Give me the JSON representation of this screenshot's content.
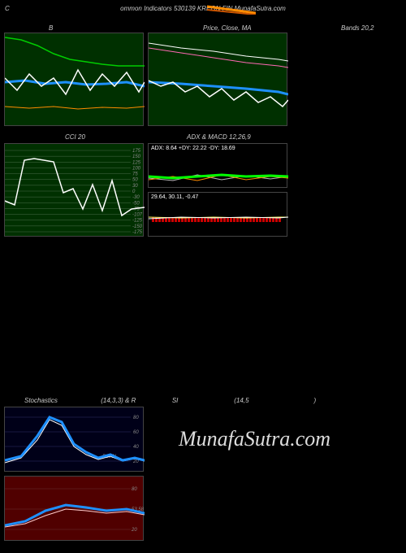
{
  "header": {
    "left": "C",
    "center": "ommon Indicators 530139 KREON FIN MunafaSutra.com"
  },
  "slash": {
    "color1": "#ff8c00",
    "color2": "#cc5500"
  },
  "row1": {
    "label_b": "B",
    "label_price": "Price, Close, MA",
    "label_bands": "Bands 20,2"
  },
  "chart_b": {
    "bg": "#003000",
    "green_line": {
      "color": "#00cc00",
      "points": [
        [
          0,
          5
        ],
        [
          20,
          8
        ],
        [
          40,
          15
        ],
        [
          60,
          25
        ],
        [
          80,
          32
        ],
        [
          100,
          35
        ],
        [
          120,
          38
        ],
        [
          140,
          40
        ],
        [
          160,
          40
        ],
        [
          172,
          40
        ]
      ]
    },
    "blue_line": {
      "color": "#1e90ff",
      "width": 3,
      "points": [
        [
          0,
          60
        ],
        [
          25,
          58
        ],
        [
          50,
          62
        ],
        [
          75,
          60
        ],
        [
          100,
          63
        ],
        [
          125,
          62
        ],
        [
          150,
          60
        ],
        [
          172,
          65
        ]
      ]
    },
    "white_line": {
      "color": "#ffffff",
      "points": [
        [
          0,
          55
        ],
        [
          15,
          70
        ],
        [
          30,
          50
        ],
        [
          45,
          65
        ],
        [
          60,
          55
        ],
        [
          75,
          75
        ],
        [
          90,
          45
        ],
        [
          105,
          70
        ],
        [
          120,
          50
        ],
        [
          135,
          65
        ],
        [
          150,
          48
        ],
        [
          165,
          72
        ],
        [
          172,
          60
        ]
      ]
    },
    "orange_line": {
      "color": "#ff8c00",
      "points": [
        [
          0,
          90
        ],
        [
          30,
          92
        ],
        [
          60,
          90
        ],
        [
          90,
          93
        ],
        [
          120,
          91
        ],
        [
          150,
          92
        ],
        [
          172,
          90
        ]
      ]
    }
  },
  "chart_price": {
    "bg": "#003000",
    "white_top": {
      "color": "#ffffff",
      "points": [
        [
          0,
          12
        ],
        [
          40,
          18
        ],
        [
          80,
          22
        ],
        [
          120,
          28
        ],
        [
          160,
          32
        ],
        [
          172,
          34
        ]
      ]
    },
    "pink": {
      "color": "#ff69b4",
      "points": [
        [
          0,
          18
        ],
        [
          40,
          24
        ],
        [
          80,
          30
        ],
        [
          120,
          36
        ],
        [
          160,
          40
        ],
        [
          172,
          42
        ]
      ]
    },
    "blue": {
      "color": "#1e90ff",
      "width": 3,
      "points": [
        [
          0,
          60
        ],
        [
          40,
          62
        ],
        [
          80,
          65
        ],
        [
          120,
          68
        ],
        [
          160,
          72
        ],
        [
          172,
          75
        ]
      ]
    },
    "white_price": {
      "color": "#ffffff",
      "points": [
        [
          0,
          58
        ],
        [
          15,
          65
        ],
        [
          30,
          60
        ],
        [
          45,
          72
        ],
        [
          60,
          65
        ],
        [
          75,
          78
        ],
        [
          90,
          68
        ],
        [
          105,
          82
        ],
        [
          120,
          72
        ],
        [
          135,
          85
        ],
        [
          150,
          78
        ],
        [
          165,
          90
        ],
        [
          172,
          82
        ]
      ]
    }
  },
  "row2": {
    "label_cci": "CCI 20",
    "label_adx": "ADX   & MACD 12,26,9"
  },
  "chart_cci": {
    "bg": "#003000",
    "ticks": [
      175,
      150,
      125,
      100,
      75,
      50,
      30,
      0,
      -30,
      -50,
      -75,
      -107,
      -125,
      -150,
      -175
    ],
    "highlight": -107,
    "line": {
      "color": "#ffffff",
      "points": [
        [
          0,
          70
        ],
        [
          12,
          75
        ],
        [
          24,
          20
        ],
        [
          36,
          18
        ],
        [
          48,
          20
        ],
        [
          60,
          22
        ],
        [
          72,
          60
        ],
        [
          84,
          55
        ],
        [
          96,
          80
        ],
        [
          108,
          50
        ],
        [
          120,
          82
        ],
        [
          132,
          45
        ],
        [
          144,
          88
        ],
        [
          156,
          80
        ],
        [
          172,
          78
        ]
      ]
    }
  },
  "chart_adx": {
    "text": "ADX: 8.64   +DY: 22.22   -DY: 18.69",
    "green": {
      "color": "#00ff00",
      "width": 3,
      "points": [
        [
          0,
          40
        ],
        [
          30,
          42
        ],
        [
          60,
          40
        ],
        [
          90,
          38
        ],
        [
          120,
          40
        ],
        [
          150,
          39
        ],
        [
          172,
          40
        ]
      ]
    },
    "orange": {
      "color": "#ff8c00",
      "points": [
        [
          0,
          44
        ],
        [
          30,
          40
        ],
        [
          60,
          45
        ],
        [
          90,
          38
        ],
        [
          120,
          44
        ],
        [
          150,
          40
        ],
        [
          172,
          42
        ]
      ]
    },
    "white": {
      "color": "#bbb",
      "points": [
        [
          0,
          42
        ],
        [
          30,
          45
        ],
        [
          60,
          38
        ],
        [
          90,
          44
        ],
        [
          120,
          39
        ],
        [
          150,
          43
        ],
        [
          172,
          40
        ]
      ]
    }
  },
  "chart_macd": {
    "text": "29.64,  30.11,  -0.47",
    "bars": {
      "color": "#cc0000",
      "y": 30,
      "height": 6,
      "count": 40
    },
    "yellow": {
      "color": "#ffff66",
      "points": [
        [
          0,
          30
        ],
        [
          40,
          31
        ],
        [
          80,
          30
        ],
        [
          120,
          31
        ],
        [
          160,
          30
        ],
        [
          172,
          30
        ]
      ]
    },
    "white": {
      "color": "#fff",
      "points": [
        [
          0,
          32
        ],
        [
          40,
          30
        ],
        [
          80,
          31
        ],
        [
          120,
          30
        ],
        [
          160,
          31
        ],
        [
          172,
          30
        ]
      ]
    }
  },
  "row3": {
    "full": "Stochastics                        (14,3,3) & R                    SI                               (14,5                                    )"
  },
  "chart_stoch": {
    "bg": "#000018",
    "ticks": [
      80,
      60,
      40,
      20
    ],
    "resol_label": "ResOL",
    "blue": {
      "color": "#1e90ff",
      "width": 3,
      "points": [
        [
          0,
          65
        ],
        [
          20,
          60
        ],
        [
          40,
          35
        ],
        [
          55,
          12
        ],
        [
          70,
          18
        ],
        [
          85,
          45
        ],
        [
          100,
          55
        ],
        [
          115,
          62
        ],
        [
          130,
          58
        ],
        [
          145,
          65
        ],
        [
          160,
          62
        ],
        [
          172,
          65
        ]
      ]
    },
    "white": {
      "color": "#fff",
      "points": [
        [
          0,
          68
        ],
        [
          20,
          62
        ],
        [
          40,
          40
        ],
        [
          55,
          15
        ],
        [
          70,
          22
        ],
        [
          85,
          48
        ],
        [
          100,
          58
        ],
        [
          115,
          64
        ],
        [
          130,
          60
        ],
        [
          145,
          66
        ],
        [
          160,
          63
        ],
        [
          172,
          66
        ]
      ]
    }
  },
  "chart_rsi": {
    "bg": "#500000",
    "ticks": [
      80,
      "53 58 50",
      20
    ],
    "blue": {
      "color": "#1e90ff",
      "width": 3,
      "points": [
        [
          0,
          60
        ],
        [
          25,
          55
        ],
        [
          50,
          42
        ],
        [
          75,
          35
        ],
        [
          100,
          38
        ],
        [
          125,
          42
        ],
        [
          150,
          40
        ],
        [
          172,
          45
        ]
      ]
    },
    "white": {
      "color": "#ffcccc",
      "points": [
        [
          0,
          62
        ],
        [
          25,
          58
        ],
        [
          50,
          48
        ],
        [
          75,
          40
        ],
        [
          100,
          42
        ],
        [
          125,
          45
        ],
        [
          150,
          43
        ],
        [
          172,
          47
        ]
      ]
    }
  },
  "watermark": "MunafaSutra.com"
}
